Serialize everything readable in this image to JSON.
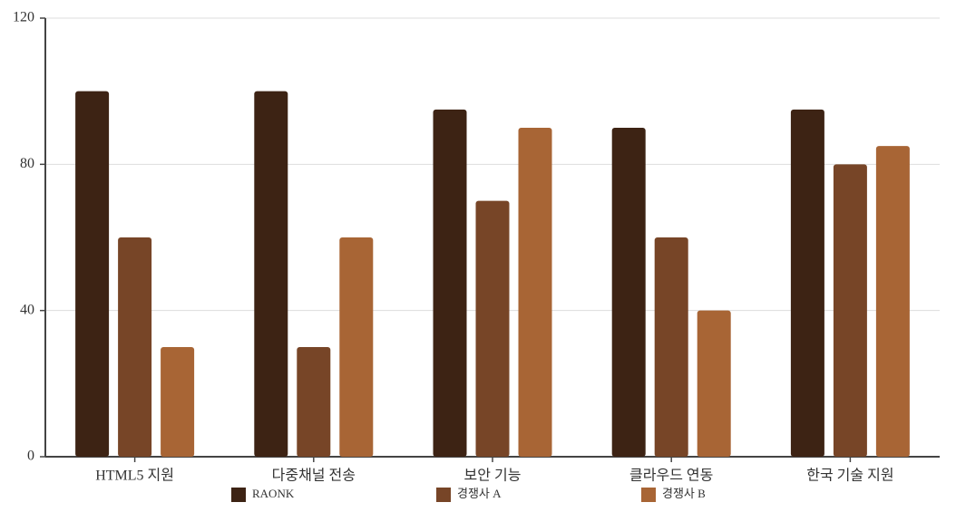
{
  "chart_data": {
    "type": "bar",
    "categories": [
      "HTML5 지원",
      "다중채널 전송",
      "보안 기능",
      "클라우드 연동",
      "한국 기술 지원"
    ],
    "series": [
      {
        "name": "RAONK",
        "color": "#3d2314",
        "values": [
          100,
          100,
          95,
          90,
          95
        ]
      },
      {
        "name": "경쟁사 A",
        "color": "#774527",
        "values": [
          60,
          30,
          70,
          60,
          80
        ]
      },
      {
        "name": "경쟁사 B",
        "color": "#a86535",
        "values": [
          30,
          60,
          90,
          40,
          85
        ]
      }
    ],
    "ylim": [
      0,
      120
    ],
    "yticks": [
      0,
      40,
      80,
      120
    ],
    "grid": true,
    "legend": "bottom"
  }
}
